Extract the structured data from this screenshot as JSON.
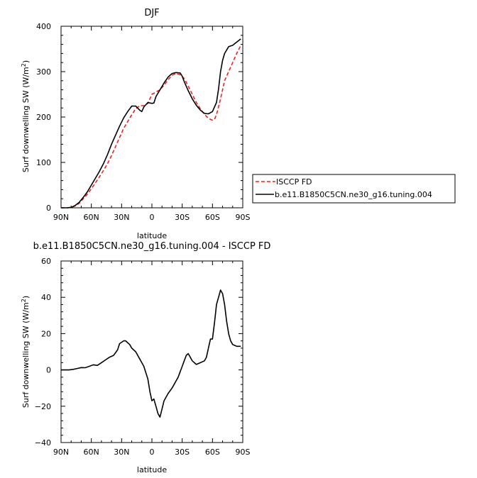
{
  "chart_data": [
    {
      "type": "line",
      "title": "DJF",
      "xlabel": "latitude",
      "ylabel_main": "Surf downwelling SW",
      "ylabel_unit": "W/m",
      "ylabel_unit_sup": "2",
      "xlim": [
        90,
        -90
      ],
      "ylim": [
        0,
        400
      ],
      "x_ticks": [
        90,
        60,
        30,
        0,
        -30,
        -60,
        -90
      ],
      "x_tick_labels": [
        "90N",
        "60N",
        "30N",
        "0",
        "30S",
        "60S",
        "90S"
      ],
      "y_ticks": [
        0,
        100,
        200,
        300,
        400
      ],
      "y_tick_labels": [
        "0",
        "100",
        "200",
        "300",
        "400"
      ],
      "legend_position": "right",
      "series": [
        {
          "name": "ISCCP FD",
          "color": "#e8231f",
          "style": "dashed",
          "x": [
            90,
            84,
            80,
            76,
            72,
            68,
            64,
            60,
            56,
            52,
            48,
            44,
            40,
            36,
            32,
            28,
            24,
            20,
            16,
            12,
            8,
            4,
            0,
            -4,
            -8,
            -12,
            -16,
            -20,
            -24,
            -28,
            -32,
            -36,
            -40,
            -44,
            -48,
            -52,
            -56,
            -60,
            -62,
            -64,
            -68,
            -72,
            -76,
            -80,
            -84,
            -88
          ],
          "y": [
            0,
            0,
            1,
            4,
            10,
            20,
            30,
            42,
            55,
            68,
            82,
            97,
            115,
            135,
            155,
            175,
            190,
            205,
            218,
            225,
            225,
            230,
            250,
            255,
            260,
            270,
            282,
            292,
            296,
            293,
            285,
            268,
            250,
            232,
            218,
            206,
            197,
            193,
            195,
            205,
            240,
            280,
            300,
            320,
            340,
            358
          ]
        },
        {
          "name": "b.e11.B1850C5CN.ne30_g16.tuning.004",
          "color": "#000000",
          "style": "solid",
          "x": [
            90,
            84,
            80,
            76,
            72,
            68,
            64,
            60,
            56,
            52,
            48,
            44,
            40,
            36,
            32,
            28,
            24,
            20,
            16,
            12,
            10,
            8,
            4,
            0,
            -2,
            -4,
            -8,
            -12,
            -16,
            -20,
            -24,
            -28,
            -30,
            -32,
            -36,
            -40,
            -44,
            -48,
            -52,
            -56,
            -60,
            -64,
            -66,
            -68,
            -70,
            -72,
            -76,
            -80,
            -84,
            -88
          ],
          "y": [
            0,
            0,
            1,
            5,
            12,
            23,
            35,
            50,
            65,
            80,
            97,
            117,
            140,
            160,
            180,
            198,
            212,
            224,
            224,
            215,
            212,
            222,
            232,
            230,
            231,
            245,
            260,
            275,
            288,
            296,
            298,
            297,
            290,
            278,
            258,
            240,
            226,
            215,
            208,
            207,
            212,
            232,
            262,
            300,
            325,
            340,
            355,
            358,
            365,
            372
          ]
        }
      ]
    },
    {
      "type": "line",
      "title": "b.e11.B1850C5CN.ne30_g16.tuning.004 - ISCCP FD",
      "xlabel": "latitude",
      "ylabel_main": "Surf downwelling SW",
      "ylabel_unit": "W/m",
      "ylabel_unit_sup": "2",
      "xlim": [
        90,
        -90
      ],
      "ylim": [
        -40,
        60
      ],
      "x_ticks": [
        90,
        60,
        30,
        0,
        -30,
        -60,
        -90
      ],
      "x_tick_labels": [
        "90N",
        "60N",
        "30N",
        "0",
        "30S",
        "60S",
        "90S"
      ],
      "y_ticks": [
        -40,
        -20,
        0,
        20,
        40,
        60
      ],
      "y_tick_labels": [
        "−40",
        "−20",
        "0",
        "20",
        "40",
        "60"
      ],
      "series": [
        {
          "color": "#000000",
          "style": "solid",
          "x": [
            90,
            82,
            78,
            74,
            70,
            66,
            62,
            58,
            54,
            50,
            46,
            42,
            38,
            34,
            32,
            28,
            26,
            22,
            20,
            16,
            12,
            8,
            4,
            2,
            0,
            -2,
            -4,
            -6,
            -8,
            -12,
            -16,
            -20,
            -24,
            -26,
            -28,
            -30,
            -32,
            -34,
            -36,
            -40,
            -44,
            -48,
            -52,
            -54,
            -56,
            -58,
            -60,
            -62,
            -64,
            -66,
            -68,
            -70,
            -72,
            -74,
            -76,
            -78,
            -80,
            -82,
            -84,
            -86,
            -88
          ],
          "y": [
            0,
            0,
            0.3,
            0.8,
            1.3,
            1.2,
            2,
            2.8,
            2.5,
            4,
            5.5,
            7,
            8,
            11,
            14.5,
            16,
            16,
            14,
            12,
            10,
            6,
            2,
            -5,
            -12,
            -17,
            -16,
            -20,
            -24,
            -26,
            -17,
            -13,
            -10,
            -6,
            -4,
            -1,
            2,
            5,
            8,
            9,
            5,
            3,
            4,
            5,
            7,
            12,
            17,
            17,
            26,
            36,
            40,
            44,
            42,
            36,
            27,
            20,
            16,
            14,
            13.5,
            13,
            13,
            13
          ]
        }
      ]
    }
  ]
}
